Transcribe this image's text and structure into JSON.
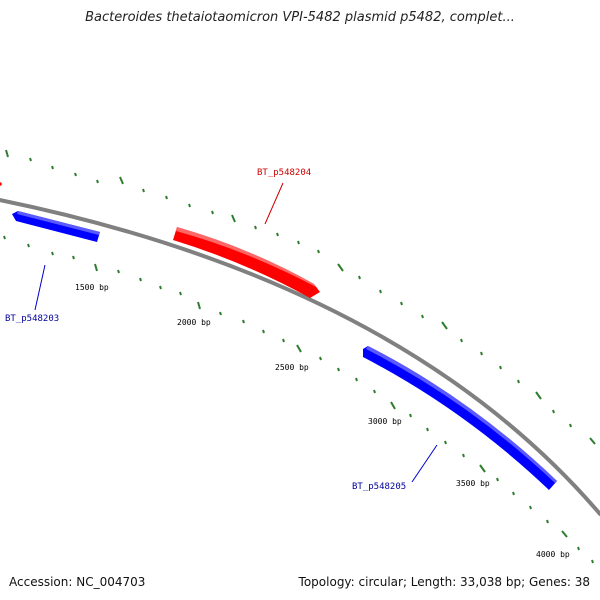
{
  "title": "Bacteroides thetaiotaomicron VPI-5482 plasmid p5482, complet...",
  "footer": {
    "accession": "Accession: NC_004703",
    "topology": "Topology: circular; Length: 33,038 bp; Genes: 38"
  },
  "ticks": [
    {
      "label": "1500 bp"
    },
    {
      "label": "2000 bp"
    },
    {
      "label": "2500 bp"
    },
    {
      "label": "3000 bp"
    },
    {
      "label": "3500 bp"
    },
    {
      "label": "4000 bp"
    }
  ],
  "genes": [
    {
      "name": "BT_p548203",
      "strand": "reverse",
      "color": "#0000ff"
    },
    {
      "name": "BT_p548204",
      "strand": "forward",
      "color": "#ff0000"
    },
    {
      "name": "BT_p548205",
      "strand": "reverse",
      "color": "#0000ff"
    }
  ],
  "colors": {
    "backbone": "#808080",
    "tick": "#2e7d2e",
    "forward_label": "#cc0000",
    "reverse_label": "#000099"
  }
}
